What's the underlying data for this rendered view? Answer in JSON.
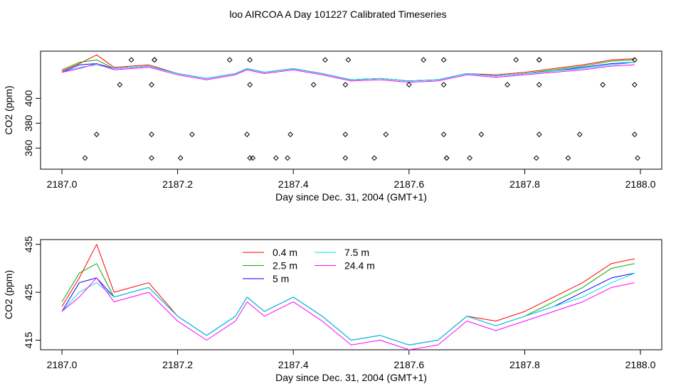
{
  "figure": {
    "title": "loo AIRCOA A  Day 101227  Calibrated Timeseries"
  },
  "colors": {
    "0.4 m": "#ff0000",
    "2.5 m": "#00b000",
    "5 m": "#0000ff",
    "7.5 m": "#00e0e0",
    "24.4 m": "#ff00ff",
    "points": "#000000"
  },
  "chart_data": [
    {
      "type": "scatter",
      "title": "loo AIRCOA A  Day 101227  Calibrated Timeseries",
      "xlabel": "Day since Dec. 31, 2004 (GMT+1)",
      "ylabel": "CO2 (ppm)",
      "xlim": [
        2187.0,
        2188.0
      ],
      "ylim": [
        343,
        438
      ],
      "xticks": [
        "2187.0",
        "2187.2",
        "2187.4",
        "2187.6",
        "2187.8",
        "2188.0"
      ],
      "yticks": [
        "360",
        "380",
        "400"
      ],
      "grid": false,
      "series": [
        {
          "name": "0.4 m",
          "x": [
            2187.0,
            2187.03,
            2187.06,
            2187.09,
            2187.12,
            2187.15,
            2187.2,
            2187.25,
            2187.3,
            2187.32,
            2187.35,
            2187.4,
            2187.45,
            2187.5,
            2187.55,
            2187.6,
            2187.65,
            2187.7,
            2187.75,
            2187.8,
            2187.85,
            2187.9,
            2187.95,
            2187.99
          ],
          "y": [
            422,
            428,
            435,
            425,
            426,
            427,
            420,
            416,
            420,
            424,
            421,
            424,
            420,
            415,
            416,
            414,
            415,
            420,
            419,
            421,
            424,
            427,
            431,
            432
          ]
        },
        {
          "name": "2.5 m",
          "x": [
            2187.0,
            2187.03,
            2187.06,
            2187.09,
            2187.12,
            2187.15,
            2187.2,
            2187.25,
            2187.3,
            2187.32,
            2187.35,
            2187.4,
            2187.45,
            2187.5,
            2187.55,
            2187.6,
            2187.65,
            2187.7,
            2187.75,
            2187.8,
            2187.85,
            2187.9,
            2187.95,
            2187.99
          ],
          "y": [
            423,
            429,
            431,
            424,
            425,
            426,
            420,
            416,
            420,
            424,
            421,
            424,
            420,
            415,
            416,
            414,
            415,
            420,
            418,
            420,
            423,
            426,
            430,
            431
          ]
        },
        {
          "name": "5 m",
          "x": [
            2187.0,
            2187.03,
            2187.06,
            2187.09,
            2187.12,
            2187.15,
            2187.2,
            2187.25,
            2187.3,
            2187.32,
            2187.35,
            2187.4,
            2187.45,
            2187.5,
            2187.55,
            2187.6,
            2187.65,
            2187.7,
            2187.75,
            2187.8,
            2187.85,
            2187.9,
            2187.95,
            2187.99
          ],
          "y": [
            421,
            427,
            428,
            424,
            425,
            426,
            420,
            416,
            420,
            424,
            421,
            424,
            420,
            415,
            416,
            414,
            415,
            420,
            418,
            420,
            422,
            425,
            428,
            429
          ]
        },
        {
          "name": "7.5 m",
          "x": [
            2187.0,
            2187.03,
            2187.06,
            2187.09,
            2187.12,
            2187.15,
            2187.2,
            2187.25,
            2187.3,
            2187.32,
            2187.35,
            2187.4,
            2187.45,
            2187.5,
            2187.55,
            2187.6,
            2187.65,
            2187.7,
            2187.75,
            2187.8,
            2187.85,
            2187.9,
            2187.95,
            2187.99
          ],
          "y": [
            421,
            425,
            427,
            424,
            425,
            426,
            420,
            416,
            420,
            424,
            421,
            424,
            420,
            415,
            416,
            414,
            415,
            420,
            418,
            420,
            422,
            424,
            427,
            429
          ]
        },
        {
          "name": "24.4 m",
          "x": [
            2187.0,
            2187.03,
            2187.06,
            2187.09,
            2187.12,
            2187.15,
            2187.2,
            2187.25,
            2187.3,
            2187.32,
            2187.35,
            2187.4,
            2187.45,
            2187.5,
            2187.55,
            2187.6,
            2187.65,
            2187.7,
            2187.75,
            2187.8,
            2187.85,
            2187.9,
            2187.95,
            2187.99
          ],
          "y": [
            421,
            424,
            428,
            423,
            424,
            425,
            419,
            415,
            419,
            423,
            420,
            423,
            419,
            414,
            415,
            413,
            414,
            419,
            417,
            419,
            421,
            423,
            426,
            427
          ]
        },
        {
          "name": "",
          "marker": "open-diamond",
          "x": [
            2187.04,
            2187.06,
            2187.1,
            2187.12,
            2187.155,
            2187.155,
            2187.155,
            2187.16,
            2187.16,
            2187.205,
            2187.225,
            2187.29,
            2187.32,
            2187.325,
            2187.325,
            2187.325,
            2187.33,
            2187.37,
            2187.39,
            2187.395,
            2187.435,
            2187.455,
            2187.49,
            2187.49,
            2187.49,
            2187.495,
            2187.54,
            2187.56,
            2187.6,
            2187.625,
            2187.66,
            2187.66,
            2187.66,
            2187.665,
            2187.665,
            2187.705,
            2187.725,
            2187.77,
            2187.785,
            2187.82,
            2187.825,
            2187.825,
            2187.825,
            2187.825,
            2187.875,
            2187.895,
            2187.935,
            2187.99,
            2187.99,
            2187.99,
            2187.995
          ],
          "y": [
            352,
            371,
            411,
            431,
            352,
            371,
            411,
            431,
            431,
            352,
            371,
            431,
            371,
            352,
            411,
            431,
            352,
            352,
            352,
            371,
            411,
            431,
            352,
            371,
            411,
            431,
            352,
            371,
            411,
            431,
            371,
            411,
            431,
            352,
            352,
            352,
            371,
            411,
            431,
            352,
            371,
            411,
            431,
            431,
            352,
            371,
            411,
            371,
            411,
            431,
            352
          ]
        }
      ]
    },
    {
      "type": "line",
      "title": "",
      "xlabel": "Day since Dec. 31, 2004 (GMT+1)",
      "ylabel": "CO2 (ppm)",
      "xlim": [
        2187.0,
        2188.0
      ],
      "ylim": [
        413,
        436
      ],
      "xticks": [
        "2187.0",
        "2187.2",
        "2187.4",
        "2187.6",
        "2187.8",
        "2188.0"
      ],
      "yticks": [
        "415",
        "425",
        "435"
      ],
      "grid": false,
      "legend": {
        "placement": "top-center",
        "columns": 2
      },
      "series": [
        {
          "name": "0.4 m",
          "x": [
            2187.0,
            2187.03,
            2187.06,
            2187.09,
            2187.12,
            2187.15,
            2187.2,
            2187.25,
            2187.3,
            2187.32,
            2187.35,
            2187.4,
            2187.45,
            2187.5,
            2187.55,
            2187.6,
            2187.65,
            2187.7,
            2187.75,
            2187.8,
            2187.85,
            2187.9,
            2187.95,
            2187.99
          ],
          "y": [
            422,
            428,
            435,
            425,
            426,
            427,
            420,
            416,
            420,
            424,
            421,
            424,
            420,
            415,
            416,
            414,
            415,
            420,
            419,
            421,
            424,
            427,
            431,
            432
          ]
        },
        {
          "name": "2.5 m",
          "x": [
            2187.0,
            2187.03,
            2187.06,
            2187.09,
            2187.12,
            2187.15,
            2187.2,
            2187.25,
            2187.3,
            2187.32,
            2187.35,
            2187.4,
            2187.45,
            2187.5,
            2187.55,
            2187.6,
            2187.65,
            2187.7,
            2187.75,
            2187.8,
            2187.85,
            2187.9,
            2187.95,
            2187.99
          ],
          "y": [
            423,
            429,
            431,
            424,
            425,
            426,
            420,
            416,
            420,
            424,
            421,
            424,
            420,
            415,
            416,
            414,
            415,
            420,
            418,
            420,
            423,
            426,
            430,
            431
          ]
        },
        {
          "name": "5 m",
          "x": [
            2187.0,
            2187.03,
            2187.06,
            2187.09,
            2187.12,
            2187.15,
            2187.2,
            2187.25,
            2187.3,
            2187.32,
            2187.35,
            2187.4,
            2187.45,
            2187.5,
            2187.55,
            2187.6,
            2187.65,
            2187.7,
            2187.75,
            2187.8,
            2187.85,
            2187.9,
            2187.95,
            2187.99
          ],
          "y": [
            421,
            427,
            428,
            424,
            425,
            426,
            420,
            416,
            420,
            424,
            421,
            424,
            420,
            415,
            416,
            414,
            415,
            420,
            418,
            420,
            422,
            425,
            428,
            429
          ]
        },
        {
          "name": "7.5 m",
          "x": [
            2187.0,
            2187.03,
            2187.06,
            2187.09,
            2187.12,
            2187.15,
            2187.2,
            2187.25,
            2187.3,
            2187.32,
            2187.35,
            2187.4,
            2187.45,
            2187.5,
            2187.55,
            2187.6,
            2187.65,
            2187.7,
            2187.75,
            2187.8,
            2187.85,
            2187.9,
            2187.95,
            2187.99
          ],
          "y": [
            421,
            425,
            427,
            424,
            425,
            426,
            420,
            416,
            420,
            424,
            421,
            424,
            420,
            415,
            416,
            414,
            415,
            420,
            418,
            420,
            422,
            424,
            427,
            429
          ]
        },
        {
          "name": "24.4 m",
          "x": [
            2187.0,
            2187.03,
            2187.06,
            2187.09,
            2187.12,
            2187.15,
            2187.2,
            2187.25,
            2187.3,
            2187.32,
            2187.35,
            2187.4,
            2187.45,
            2187.5,
            2187.55,
            2187.6,
            2187.65,
            2187.7,
            2187.75,
            2187.8,
            2187.85,
            2187.9,
            2187.95,
            2187.99
          ],
          "y": [
            421,
            424,
            428,
            423,
            424,
            425,
            419,
            415,
            419,
            423,
            420,
            423,
            419,
            414,
            415,
            413,
            414,
            419,
            417,
            419,
            421,
            423,
            426,
            427
          ]
        }
      ]
    }
  ]
}
